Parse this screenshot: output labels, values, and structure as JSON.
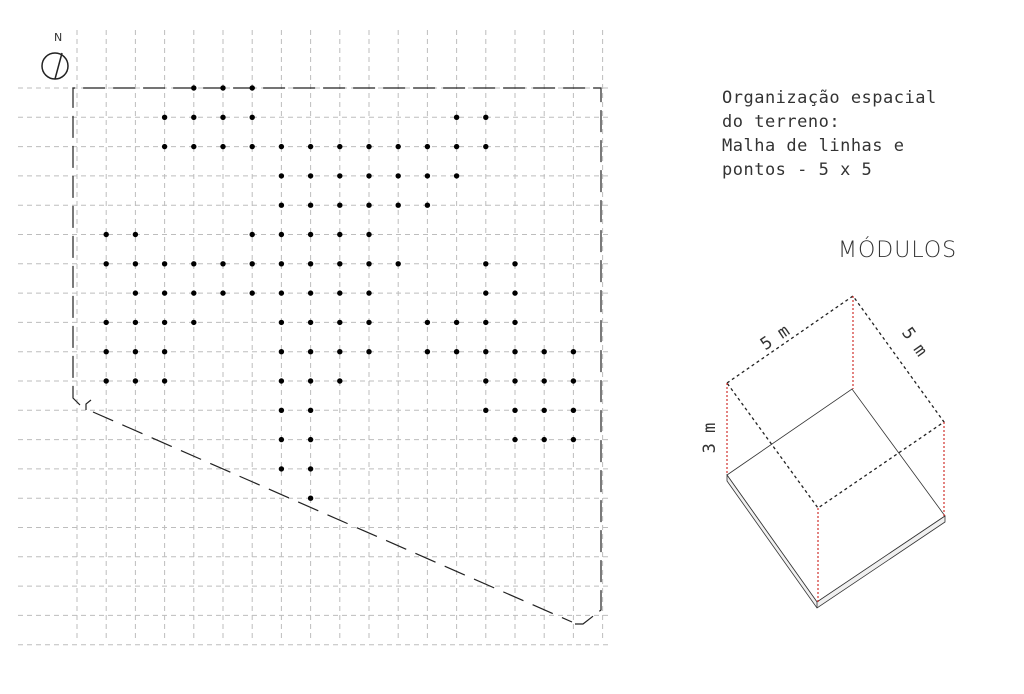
{
  "north_label": "N",
  "description_lines": [
    "Organização espacial",
    "do terreno:",
    "Malha de linhas e",
    "pontos - 5 x 5"
  ],
  "modules_title": "MÓDULOS",
  "module_dims": {
    "length": "5 m",
    "width": "5 m",
    "height": "3 m"
  },
  "grid": {
    "columns": 19,
    "rows": 20,
    "line_color": "#bdbdbd",
    "dot_color": "#000000",
    "boundary_color": "#222222",
    "height_edge_color": "#d0312d"
  },
  "points": [
    [
      4,
      0
    ],
    [
      5,
      0
    ],
    [
      6,
      0
    ],
    [
      3,
      1
    ],
    [
      4,
      1
    ],
    [
      5,
      1
    ],
    [
      6,
      1
    ],
    [
      13,
      1
    ],
    [
      14,
      1
    ],
    [
      3,
      2
    ],
    [
      4,
      2
    ],
    [
      5,
      2
    ],
    [
      6,
      2
    ],
    [
      7,
      2
    ],
    [
      8,
      2
    ],
    [
      9,
      2
    ],
    [
      10,
      2
    ],
    [
      11,
      2
    ],
    [
      12,
      2
    ],
    [
      13,
      2
    ],
    [
      14,
      2
    ],
    [
      7,
      3
    ],
    [
      8,
      3
    ],
    [
      9,
      3
    ],
    [
      10,
      3
    ],
    [
      11,
      3
    ],
    [
      12,
      3
    ],
    [
      13,
      3
    ],
    [
      7,
      4
    ],
    [
      8,
      4
    ],
    [
      9,
      4
    ],
    [
      10,
      4
    ],
    [
      11,
      4
    ],
    [
      12,
      4
    ],
    [
      1,
      5
    ],
    [
      2,
      5
    ],
    [
      6,
      5
    ],
    [
      7,
      5
    ],
    [
      8,
      5
    ],
    [
      9,
      5
    ],
    [
      10,
      5
    ],
    [
      1,
      6
    ],
    [
      2,
      6
    ],
    [
      3,
      6
    ],
    [
      4,
      6
    ],
    [
      5,
      6
    ],
    [
      6,
      6
    ],
    [
      7,
      6
    ],
    [
      8,
      6
    ],
    [
      9,
      6
    ],
    [
      10,
      6
    ],
    [
      11,
      6
    ],
    [
      14,
      6
    ],
    [
      15,
      6
    ],
    [
      2,
      7
    ],
    [
      3,
      7
    ],
    [
      4,
      7
    ],
    [
      5,
      7
    ],
    [
      6,
      7
    ],
    [
      7,
      7
    ],
    [
      8,
      7
    ],
    [
      9,
      7
    ],
    [
      10,
      7
    ],
    [
      14,
      7
    ],
    [
      15,
      7
    ],
    [
      1,
      8
    ],
    [
      2,
      8
    ],
    [
      3,
      8
    ],
    [
      4,
      8
    ],
    [
      7,
      8
    ],
    [
      8,
      8
    ],
    [
      9,
      8
    ],
    [
      10,
      8
    ],
    [
      12,
      8
    ],
    [
      13,
      8
    ],
    [
      14,
      8
    ],
    [
      15,
      8
    ],
    [
      1,
      9
    ],
    [
      2,
      9
    ],
    [
      3,
      9
    ],
    [
      7,
      9
    ],
    [
      8,
      9
    ],
    [
      9,
      9
    ],
    [
      10,
      9
    ],
    [
      12,
      9
    ],
    [
      13,
      9
    ],
    [
      14,
      9
    ],
    [
      15,
      9
    ],
    [
      16,
      9
    ],
    [
      17,
      9
    ],
    [
      1,
      10
    ],
    [
      2,
      10
    ],
    [
      3,
      10
    ],
    [
      7,
      10
    ],
    [
      8,
      10
    ],
    [
      9,
      10
    ],
    [
      14,
      10
    ],
    [
      15,
      10
    ],
    [
      16,
      10
    ],
    [
      17,
      10
    ],
    [
      7,
      11
    ],
    [
      8,
      11
    ],
    [
      14,
      11
    ],
    [
      15,
      11
    ],
    [
      16,
      11
    ],
    [
      17,
      11
    ],
    [
      7,
      12
    ],
    [
      8,
      12
    ],
    [
      15,
      12
    ],
    [
      16,
      12
    ],
    [
      17,
      12
    ],
    [
      7,
      13
    ],
    [
      8,
      13
    ],
    [
      8,
      14
    ]
  ]
}
